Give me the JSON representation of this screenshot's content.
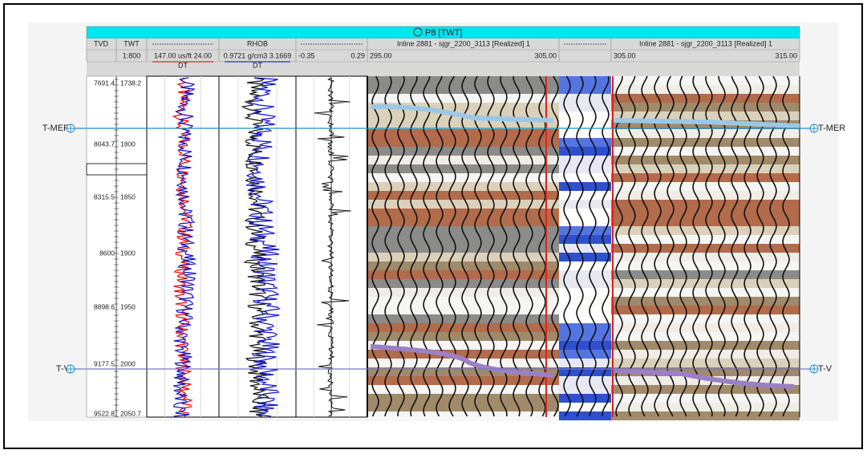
{
  "title": "P8 [TWT]",
  "header": {
    "tvd": "TVD",
    "twt": "TWT",
    "rhob": "RHOB",
    "inline_1": "Inline 2881 - sjgr_2200_3113 [Realized] 1",
    "inline_2": "Inline 2881 - sjgr_2200_3113 [Realized] 1"
  },
  "scale": {
    "twt": "1:800",
    "dt": "147.00 us/ft 24.00",
    "rhob": "0.9721 g/cm3 3.1669",
    "log3_min": "-0.35",
    "log3_max": "0.29",
    "inline_1_min": "295.00",
    "inline_1_max": "305.00",
    "inline_2_min": "305.00",
    "inline_2_max": "315.00"
  },
  "curve_names": [
    "DT",
    "DT"
  ],
  "depth_labels": {
    "tvd": [
      "7691.4",
      "8043.7",
      "8315.5",
      "8600",
      "8898.6",
      "9177.5",
      "9522.8"
    ],
    "twt": [
      "1738.2",
      "1800",
      "1850",
      "1900",
      "1950",
      "2000",
      "2050.7"
    ]
  },
  "markers": [
    {
      "name": "T-MER"
    },
    {
      "name": "T-V"
    }
  ]
}
